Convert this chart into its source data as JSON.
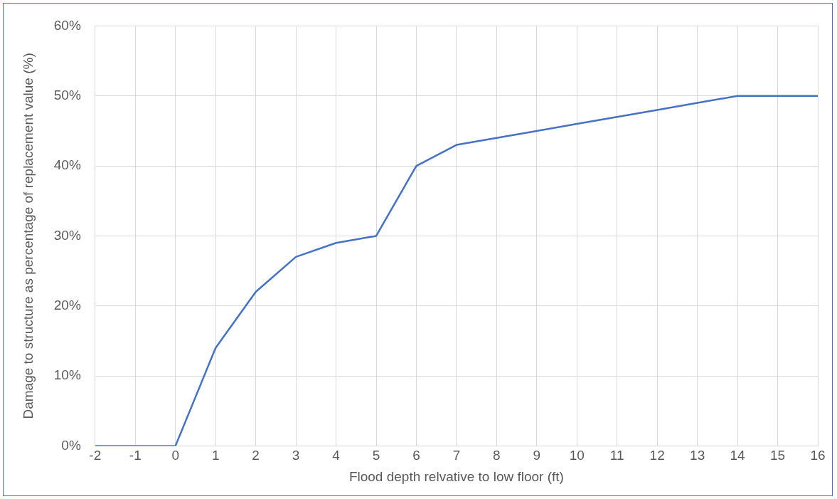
{
  "chart_data": {
    "type": "line",
    "xlabel": "Flood depth relvative to low floor (ft)",
    "ylabel": "Damage to structure as percentage of replacement value (%)",
    "x": [
      -2,
      -1,
      0,
      1,
      2,
      3,
      4,
      5,
      6,
      7,
      8,
      9,
      10,
      11,
      12,
      13,
      14,
      15,
      16
    ],
    "series": [
      {
        "color": "#4472c4",
        "values": [
          0,
          0,
          0,
          14,
          22,
          27,
          29,
          30,
          40,
          43,
          44,
          45,
          46,
          47,
          48,
          49,
          50,
          50,
          50
        ]
      }
    ],
    "xlim": [
      -2,
      16
    ],
    "xticks": [
      -2,
      -1,
      0,
      1,
      2,
      3,
      4,
      5,
      6,
      7,
      8,
      9,
      10,
      11,
      12,
      13,
      14,
      15,
      16
    ],
    "ylim": [
      0,
      60
    ],
    "yticks": [
      {
        "value": 0,
        "label": "0%"
      },
      {
        "value": 10,
        "label": "10%"
      },
      {
        "value": 20,
        "label": "20%"
      },
      {
        "value": 30,
        "label": "30%"
      },
      {
        "value": 40,
        "label": "40%"
      },
      {
        "value": 50,
        "label": "50%"
      },
      {
        "value": 60,
        "label": "60%"
      }
    ],
    "grid": true,
    "legend": false,
    "marker": "none",
    "line_style": "solid"
  }
}
